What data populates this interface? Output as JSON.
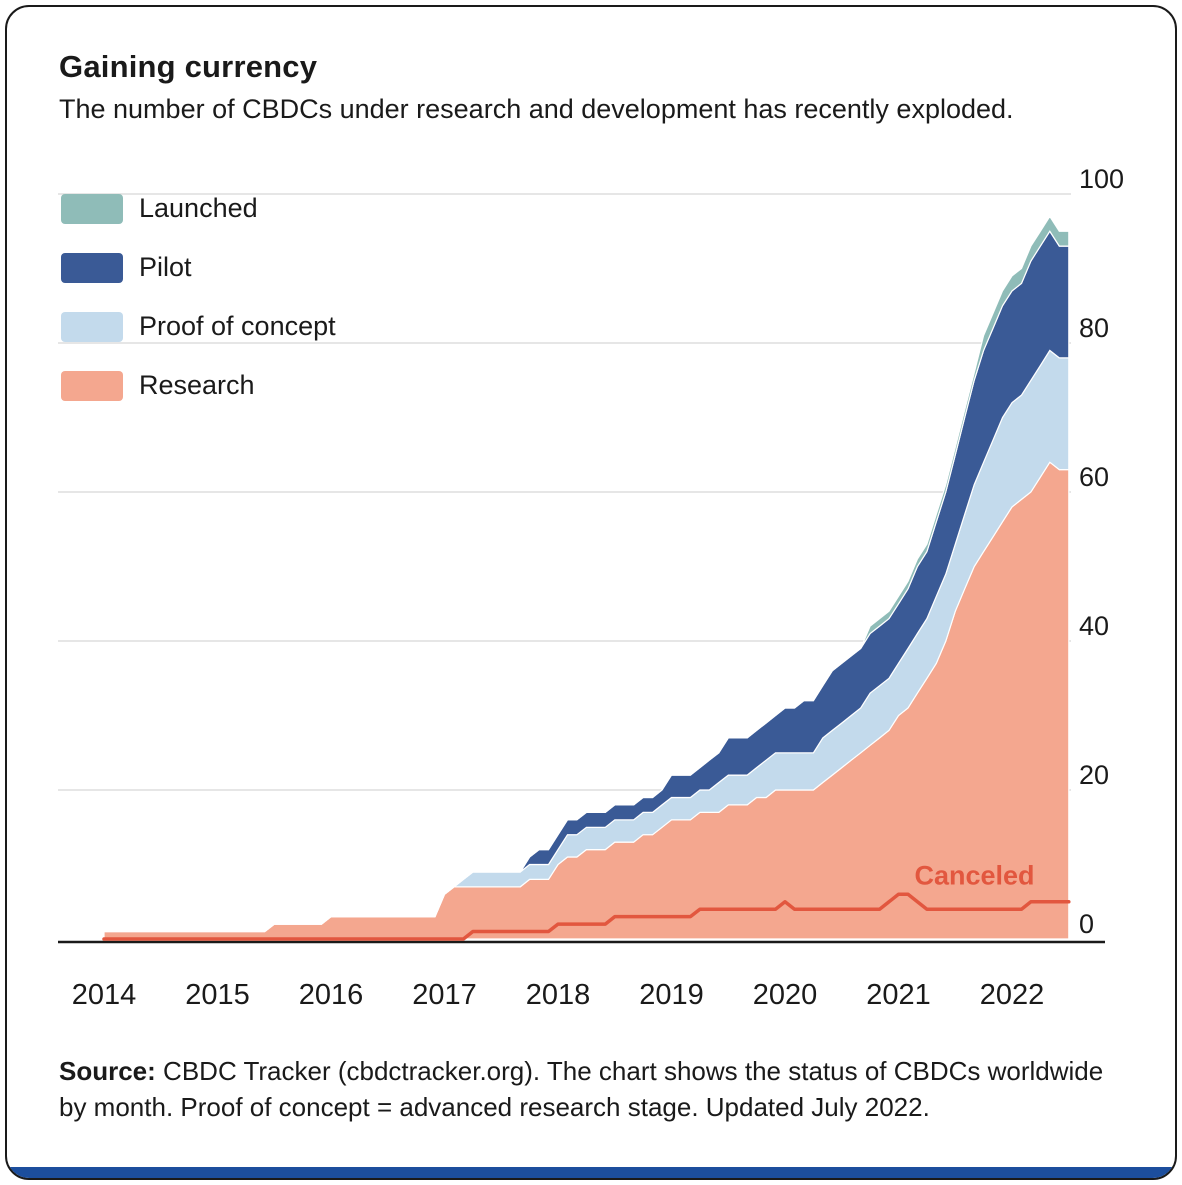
{
  "header": {
    "title": "Gaining currency",
    "subtitle": "The number of CBDCs under research and development has recently exploded."
  },
  "legend": [
    {
      "label": "Launched",
      "color": "#8FBCB8"
    },
    {
      "label": "Pilot",
      "color": "#3A5A96"
    },
    {
      "label": "Proof of concept",
      "color": "#C3DAEC"
    },
    {
      "label": "Research",
      "color": "#F4A78F"
    }
  ],
  "source": {
    "label": "Source:",
    "text": "CBDC Tracker (cbdctracker.org). The chart shows the status of CBDCs worldwide by month. Proof of concept = advanced research stage. Updated July 2022."
  },
  "colors": {
    "frame_border": "#1a1a1a",
    "accent_bar": "#1C4E9D",
    "gridline": "#dedede",
    "canceled": "#E2573F"
  },
  "chart_data": {
    "type": "area",
    "stacked": true,
    "title": "Gaining currency",
    "frequency": "monthly",
    "x_start": "2014-01",
    "x_end": "2022-07",
    "x_tick_labels": [
      "2014",
      "2015",
      "2016",
      "2017",
      "2018",
      "2019",
      "2020",
      "2021",
      "2022"
    ],
    "y_ticks": [
      0,
      20,
      40,
      60,
      80,
      100
    ],
    "ylim": [
      0,
      100
    ],
    "grid": true,
    "legend_position": "top-left",
    "y_axis_side": "right",
    "series": [
      {
        "name": "Research",
        "color": "#F4A78F",
        "values": [
          1,
          1,
          1,
          1,
          1,
          1,
          1,
          1,
          1,
          1,
          1,
          1,
          1,
          1,
          1,
          1,
          1,
          1,
          2,
          2,
          2,
          2,
          2,
          2,
          3,
          3,
          3,
          3,
          3,
          3,
          3,
          3,
          3,
          3,
          3,
          3,
          6,
          7,
          7,
          7,
          7,
          7,
          7,
          7,
          7,
          8,
          8,
          8,
          10,
          11,
          11,
          12,
          12,
          12,
          13,
          13,
          13,
          14,
          14,
          15,
          16,
          16,
          16,
          17,
          17,
          17,
          18,
          18,
          18,
          19,
          19,
          20,
          20,
          20,
          20,
          20,
          21,
          22,
          23,
          24,
          25,
          26,
          27,
          28,
          30,
          31,
          33,
          35,
          37,
          40,
          44,
          47,
          50,
          52,
          54,
          56,
          58,
          59,
          60,
          62,
          64,
          63,
          63
        ]
      },
      {
        "name": "Proof of concept",
        "color": "#C3DAEC",
        "values": [
          0,
          0,
          0,
          0,
          0,
          0,
          0,
          0,
          0,
          0,
          0,
          0,
          0,
          0,
          0,
          0,
          0,
          0,
          0,
          0,
          0,
          0,
          0,
          0,
          0,
          0,
          0,
          0,
          0,
          0,
          0,
          0,
          0,
          0,
          0,
          0,
          0,
          0,
          1,
          2,
          2,
          2,
          2,
          2,
          2,
          2,
          2,
          2,
          2,
          3,
          3,
          3,
          3,
          3,
          3,
          3,
          3,
          3,
          3,
          3,
          3,
          3,
          3,
          3,
          3,
          4,
          4,
          4,
          4,
          4,
          5,
          5,
          5,
          5,
          5,
          5,
          6,
          6,
          6,
          6,
          6,
          7,
          7,
          7,
          7,
          8,
          8,
          8,
          9,
          9,
          9,
          10,
          11,
          12,
          13,
          14,
          14,
          14,
          15,
          15,
          15,
          15,
          15
        ]
      },
      {
        "name": "Pilot",
        "color": "#3A5A96",
        "values": [
          0,
          0,
          0,
          0,
          0,
          0,
          0,
          0,
          0,
          0,
          0,
          0,
          0,
          0,
          0,
          0,
          0,
          0,
          0,
          0,
          0,
          0,
          0,
          0,
          0,
          0,
          0,
          0,
          0,
          0,
          0,
          0,
          0,
          0,
          0,
          0,
          0,
          0,
          0,
          0,
          0,
          0,
          0,
          0,
          0,
          1,
          2,
          2,
          2,
          2,
          2,
          2,
          2,
          2,
          2,
          2,
          2,
          2,
          2,
          2,
          3,
          3,
          3,
          3,
          4,
          4,
          5,
          5,
          5,
          5,
          5,
          5,
          6,
          6,
          7,
          7,
          7,
          8,
          8,
          8,
          8,
          8,
          8,
          8,
          8,
          8,
          9,
          9,
          10,
          11,
          12,
          13,
          14,
          15,
          15,
          15,
          15,
          15,
          16,
          16,
          16,
          15,
          15
        ]
      },
      {
        "name": "Launched",
        "color": "#8FBCB8",
        "values": [
          0,
          0,
          0,
          0,
          0,
          0,
          0,
          0,
          0,
          0,
          0,
          0,
          0,
          0,
          0,
          0,
          0,
          0,
          0,
          0,
          0,
          0,
          0,
          0,
          0,
          0,
          0,
          0,
          0,
          0,
          0,
          0,
          0,
          0,
          0,
          0,
          0,
          0,
          0,
          0,
          0,
          0,
          0,
          0,
          0,
          0,
          0,
          0,
          0,
          0,
          0,
          0,
          0,
          0,
          0,
          0,
          0,
          0,
          0,
          0,
          0,
          0,
          0,
          0,
          0,
          0,
          0,
          0,
          0,
          0,
          0,
          0,
          0,
          0,
          0,
          0,
          0,
          0,
          0,
          0,
          0,
          1,
          1,
          1,
          1,
          1,
          1,
          1,
          1,
          1,
          1,
          1,
          1,
          2,
          2,
          2,
          2,
          2,
          2,
          2,
          2,
          2,
          2
        ]
      }
    ],
    "overlay_line": {
      "name": "Canceled",
      "color": "#E2573F",
      "values": [
        0,
        0,
        0,
        0,
        0,
        0,
        0,
        0,
        0,
        0,
        0,
        0,
        0,
        0,
        0,
        0,
        0,
        0,
        0,
        0,
        0,
        0,
        0,
        0,
        0,
        0,
        0,
        0,
        0,
        0,
        0,
        0,
        0,
        0,
        0,
        0,
        0,
        0,
        0,
        1,
        1,
        1,
        1,
        1,
        1,
        1,
        1,
        1,
        2,
        2,
        2,
        2,
        2,
        2,
        3,
        3,
        3,
        3,
        3,
        3,
        3,
        3,
        3,
        4,
        4,
        4,
        4,
        4,
        4,
        4,
        4,
        4,
        5,
        4,
        4,
        4,
        4,
        4,
        4,
        4,
        4,
        4,
        4,
        5,
        6,
        6,
        5,
        4,
        4,
        4,
        4,
        4,
        4,
        4,
        4,
        4,
        4,
        4,
        5,
        5,
        5,
        5,
        5
      ]
    },
    "annotation": {
      "text": "Canceled",
      "x_year": 2021.67,
      "y_value": 7.3,
      "color": "#E2573F"
    }
  }
}
